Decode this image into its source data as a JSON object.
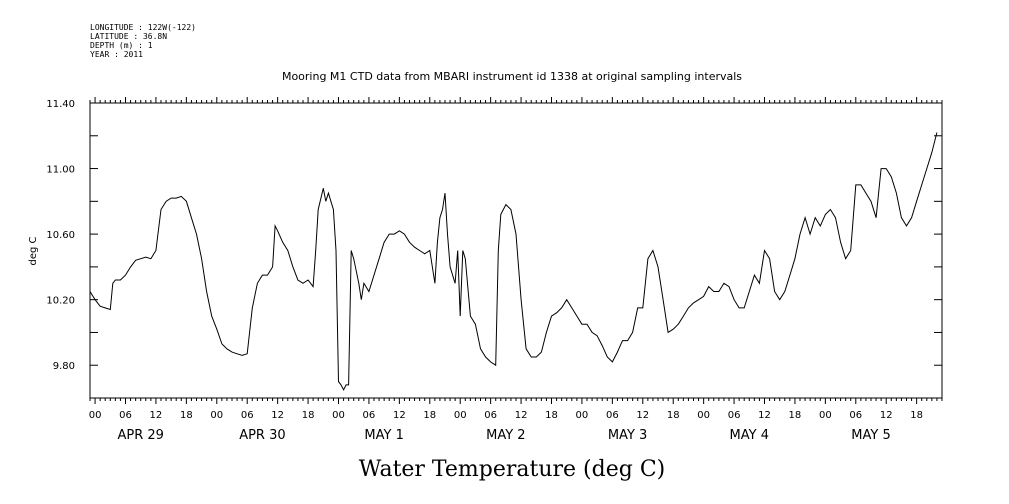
{
  "header": {
    "longitude": "LONGITUDE : 122W(-122)",
    "latitude": "LATITUDE : 36.8N",
    "depth": "DEPTH (m) : 1",
    "year": "YEAR : 2011"
  },
  "chart_data": {
    "type": "line",
    "title": "Mooring M1 CTD data from MBARI instrument id 1338 at original sampling intervals",
    "xlabel": "Water Temperature (deg C)",
    "ylabel": "deg C",
    "x_units": "hours since APR 29 00:00",
    "xlim": [
      -1,
      167
    ],
    "ylim": [
      9.6,
      11.4
    ],
    "y_ticks": [
      "9.80",
      "10.20",
      "10.60",
      "11.00",
      "11.40"
    ],
    "x_hour_ticks": [
      "00",
      "06",
      "12",
      "18",
      "00",
      "06",
      "12",
      "18",
      "00",
      "06",
      "12",
      "18",
      "00",
      "06",
      "12",
      "18",
      "00",
      "06",
      "12",
      "18",
      "00",
      "06",
      "12",
      "18",
      "00",
      "06",
      "12",
      "18"
    ],
    "x_day_labels": [
      "APR 29",
      "APR 30",
      "MAY  1",
      "MAY  2",
      "MAY  3",
      "MAY  4",
      "MAY  5"
    ],
    "grid": false,
    "series": [
      {
        "values": [
          [
            -1,
            10.25
          ],
          [
            0,
            10.2
          ],
          [
            1,
            10.16
          ],
          [
            2,
            10.15
          ],
          [
            3,
            10.14
          ],
          [
            3.5,
            10.3
          ],
          [
            4,
            10.32
          ],
          [
            5,
            10.32
          ],
          [
            6,
            10.35
          ],
          [
            7,
            10.4
          ],
          [
            8,
            10.44
          ],
          [
            9,
            10.45
          ],
          [
            10,
            10.46
          ],
          [
            11,
            10.45
          ],
          [
            12,
            10.5
          ],
          [
            13,
            10.75
          ],
          [
            14,
            10.8
          ],
          [
            15,
            10.82
          ],
          [
            16,
            10.82
          ],
          [
            17,
            10.83
          ],
          [
            18,
            10.8
          ],
          [
            19,
            10.7
          ],
          [
            20,
            10.6
          ],
          [
            21,
            10.45
          ],
          [
            22,
            10.25
          ],
          [
            23,
            10.1
          ],
          [
            24,
            10.02
          ],
          [
            25,
            9.93
          ],
          [
            26,
            9.9
          ],
          [
            27,
            9.88
          ],
          [
            28,
            9.87
          ],
          [
            29,
            9.86
          ],
          [
            30,
            9.87
          ],
          [
            31,
            10.15
          ],
          [
            32,
            10.3
          ],
          [
            33,
            10.35
          ],
          [
            34,
            10.35
          ],
          [
            35,
            10.4
          ],
          [
            35.5,
            10.65
          ],
          [
            36,
            10.62
          ],
          [
            37,
            10.55
          ],
          [
            38,
            10.5
          ],
          [
            39,
            10.4
          ],
          [
            40,
            10.32
          ],
          [
            41,
            10.3
          ],
          [
            42,
            10.32
          ],
          [
            43,
            10.28
          ],
          [
            43.5,
            10.5
          ],
          [
            44,
            10.75
          ],
          [
            45,
            10.88
          ],
          [
            45.5,
            10.8
          ],
          [
            46,
            10.85
          ],
          [
            47,
            10.75
          ],
          [
            47.5,
            10.5
          ],
          [
            48,
            9.7
          ],
          [
            48.5,
            9.68
          ],
          [
            49,
            9.65
          ],
          [
            49.5,
            9.68
          ],
          [
            50,
            9.68
          ],
          [
            50.5,
            10.5
          ],
          [
            51,
            10.45
          ],
          [
            52,
            10.3
          ],
          [
            52.5,
            10.2
          ],
          [
            53,
            10.3
          ],
          [
            54,
            10.25
          ],
          [
            55,
            10.35
          ],
          [
            56,
            10.45
          ],
          [
            57,
            10.55
          ],
          [
            58,
            10.6
          ],
          [
            59,
            10.6
          ],
          [
            60,
            10.62
          ],
          [
            61,
            10.6
          ],
          [
            62,
            10.55
          ],
          [
            63,
            10.52
          ],
          [
            64,
            10.5
          ],
          [
            65,
            10.48
          ],
          [
            66,
            10.5
          ],
          [
            67,
            10.3
          ],
          [
            67.5,
            10.55
          ],
          [
            68,
            10.7
          ],
          [
            68.5,
            10.75
          ],
          [
            69,
            10.85
          ],
          [
            69.5,
            10.6
          ],
          [
            70,
            10.4
          ],
          [
            71,
            10.3
          ],
          [
            71.5,
            10.5
          ],
          [
            72,
            10.1
          ],
          [
            72.5,
            10.5
          ],
          [
            73,
            10.45
          ],
          [
            74,
            10.1
          ],
          [
            75,
            10.05
          ],
          [
            76,
            9.9
          ],
          [
            77,
            9.85
          ],
          [
            78,
            9.82
          ],
          [
            79,
            9.8
          ],
          [
            79.5,
            10.5
          ],
          [
            80,
            10.72
          ],
          [
            81,
            10.78
          ],
          [
            82,
            10.75
          ],
          [
            83,
            10.6
          ],
          [
            84,
            10.2
          ],
          [
            85,
            9.9
          ],
          [
            86,
            9.85
          ],
          [
            87,
            9.85
          ],
          [
            88,
            9.88
          ],
          [
            89,
            10.0
          ],
          [
            90,
            10.1
          ],
          [
            91,
            10.12
          ],
          [
            92,
            10.15
          ],
          [
            93,
            10.2
          ],
          [
            94,
            10.15
          ],
          [
            95,
            10.1
          ],
          [
            96,
            10.05
          ],
          [
            97,
            10.05
          ],
          [
            98,
            10.0
          ],
          [
            99,
            9.98
          ],
          [
            100,
            9.92
          ],
          [
            101,
            9.85
          ],
          [
            102,
            9.82
          ],
          [
            103,
            9.88
          ],
          [
            104,
            9.95
          ],
          [
            105,
            9.95
          ],
          [
            106,
            10.0
          ],
          [
            107,
            10.15
          ],
          [
            108,
            10.15
          ],
          [
            109,
            10.45
          ],
          [
            110,
            10.5
          ],
          [
            111,
            10.4
          ],
          [
            112,
            10.2
          ],
          [
            113,
            10.0
          ],
          [
            114,
            10.02
          ],
          [
            115,
            10.05
          ],
          [
            116,
            10.1
          ],
          [
            117,
            10.15
          ],
          [
            118,
            10.18
          ],
          [
            119,
            10.2
          ],
          [
            120,
            10.22
          ],
          [
            121,
            10.28
          ],
          [
            122,
            10.25
          ],
          [
            123,
            10.25
          ],
          [
            124,
            10.3
          ],
          [
            125,
            10.28
          ],
          [
            126,
            10.2
          ],
          [
            127,
            10.15
          ],
          [
            128,
            10.15
          ],
          [
            129,
            10.25
          ],
          [
            130,
            10.35
          ],
          [
            131,
            10.3
          ],
          [
            132,
            10.5
          ],
          [
            133,
            10.45
          ],
          [
            134,
            10.25
          ],
          [
            135,
            10.2
          ],
          [
            136,
            10.25
          ],
          [
            137,
            10.35
          ],
          [
            138,
            10.45
          ],
          [
            139,
            10.6
          ],
          [
            140,
            10.7
          ],
          [
            141,
            10.6
          ],
          [
            142,
            10.7
          ],
          [
            143,
            10.65
          ],
          [
            144,
            10.72
          ],
          [
            145,
            10.75
          ],
          [
            146,
            10.7
          ],
          [
            147,
            10.55
          ],
          [
            148,
            10.45
          ],
          [
            149,
            10.5
          ],
          [
            150,
            10.9
          ],
          [
            151,
            10.9
          ],
          [
            152,
            10.85
          ],
          [
            153,
            10.8
          ],
          [
            154,
            10.7
          ],
          [
            155,
            11.0
          ],
          [
            156,
            11.0
          ],
          [
            157,
            10.95
          ],
          [
            158,
            10.85
          ],
          [
            159,
            10.7
          ],
          [
            160,
            10.65
          ],
          [
            161,
            10.7
          ],
          [
            162,
            10.8
          ],
          [
            163,
            10.9
          ],
          [
            164,
            11.0
          ],
          [
            165,
            11.1
          ],
          [
            166,
            11.22
          ]
        ]
      }
    ]
  }
}
